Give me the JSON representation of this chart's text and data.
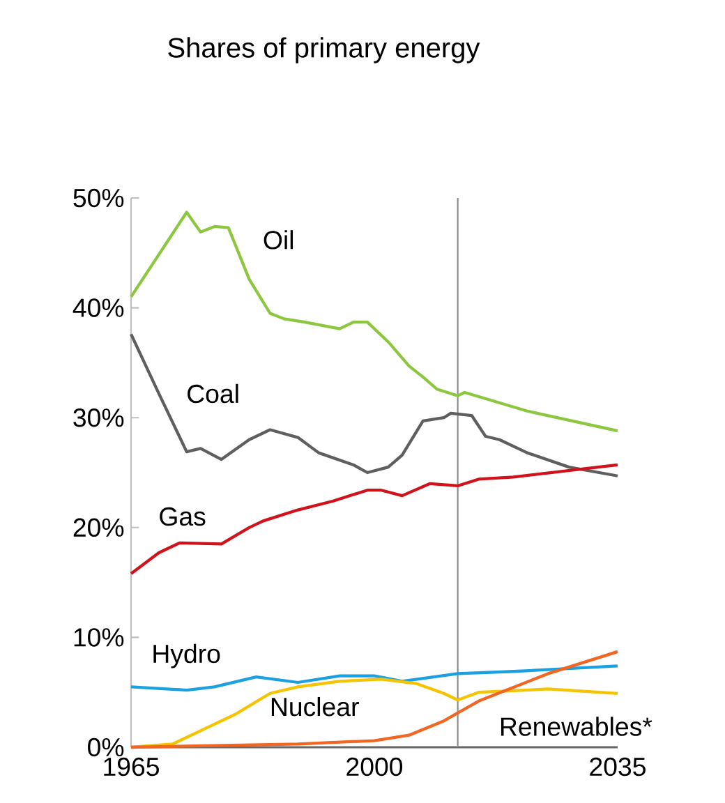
{
  "chart_data": {
    "type": "line",
    "title": "Shares of primary energy",
    "series": [
      {
        "name": "Oil",
        "color": "#8dc63f",
        "x": [
          1965,
          1973,
          1975,
          1977,
          1979,
          1982,
          1985,
          1987,
          1990,
          1995,
          1997,
          1999,
          2002,
          2005,
          2007,
          2009,
          2012,
          2013,
          2022,
          2035
        ],
        "values": [
          41.0,
          48.7,
          46.9,
          47.4,
          47.3,
          42.6,
          39.5,
          39.0,
          38.7,
          38.1,
          38.7,
          38.7,
          36.9,
          34.7,
          33.7,
          32.6,
          32.0,
          32.3,
          30.6,
          28.8
        ]
      },
      {
        "name": "Coal",
        "color": "#5f5f5f",
        "x": [
          1965,
          1969,
          1973,
          1975,
          1978,
          1982,
          1985,
          1989,
          1992,
          1997,
          1999,
          2002,
          2004,
          2007,
          2010,
          2011,
          2014,
          2016,
          2018,
          2022,
          2028,
          2035
        ],
        "values": [
          37.6,
          32.2,
          26.9,
          27.2,
          26.2,
          28.0,
          28.9,
          28.2,
          26.8,
          25.7,
          25.0,
          25.5,
          26.6,
          29.7,
          30.0,
          30.4,
          30.2,
          28.3,
          28.0,
          26.8,
          25.5,
          24.7
        ]
      },
      {
        "name": "Gas",
        "color": "#d2121b",
        "x": [
          1965,
          1969,
          1972,
          1978,
          1982,
          1984,
          1989,
          1994,
          1999,
          2001,
          2004,
          2008,
          2012,
          2015,
          2020,
          2035
        ],
        "values": [
          15.8,
          17.7,
          18.6,
          18.5,
          20.0,
          20.6,
          21.6,
          22.4,
          23.4,
          23.4,
          22.9,
          24.0,
          23.8,
          24.4,
          24.6,
          25.7
        ]
      },
      {
        "name": "Hydro",
        "color": "#1ba1e2",
        "x": [
          1965,
          1973,
          1977,
          1983,
          1989,
          1995,
          2000,
          2004,
          2012,
          2020,
          2035
        ],
        "values": [
          5.5,
          5.2,
          5.5,
          6.4,
          5.9,
          6.5,
          6.5,
          6.0,
          6.7,
          6.9,
          7.4
        ]
      },
      {
        "name": "Nuclear",
        "color": "#f5c400",
        "x": [
          1965,
          1971,
          1976,
          1980,
          1985,
          1989,
          1995,
          2001,
          2006,
          2010,
          2012,
          2015,
          2025,
          2035
        ],
        "values": [
          0.0,
          0.3,
          1.8,
          3.0,
          4.9,
          5.5,
          6.0,
          6.2,
          5.8,
          4.9,
          4.3,
          5.0,
          5.3,
          4.9
        ]
      },
      {
        "name": "Renewables*",
        "color": "#f26522",
        "x": [
          1965,
          1989,
          2000,
          2005,
          2010,
          2015,
          2025,
          2035
        ],
        "values": [
          0.0,
          0.3,
          0.6,
          1.1,
          2.4,
          4.2,
          6.7,
          8.7
        ]
      }
    ],
    "xlim": [
      1965,
      2035
    ],
    "ylim": [
      0,
      50
    ],
    "xticks": [
      1965,
      2000,
      2035
    ],
    "yticks": [
      {
        "value": 0,
        "label": "0%"
      },
      {
        "value": 10,
        "label": "10%"
      },
      {
        "value": 20,
        "label": "20%"
      },
      {
        "value": 30,
        "label": "30%"
      },
      {
        "value": 40,
        "label": "40%"
      },
      {
        "value": 50,
        "label": "50%"
      }
    ],
    "ref_lines": [
      {
        "axis": "x",
        "value": 2012,
        "color": "#8a8a8a"
      }
    ],
    "grid": false,
    "legend": false,
    "marker": "none",
    "line_style": "solid"
  }
}
